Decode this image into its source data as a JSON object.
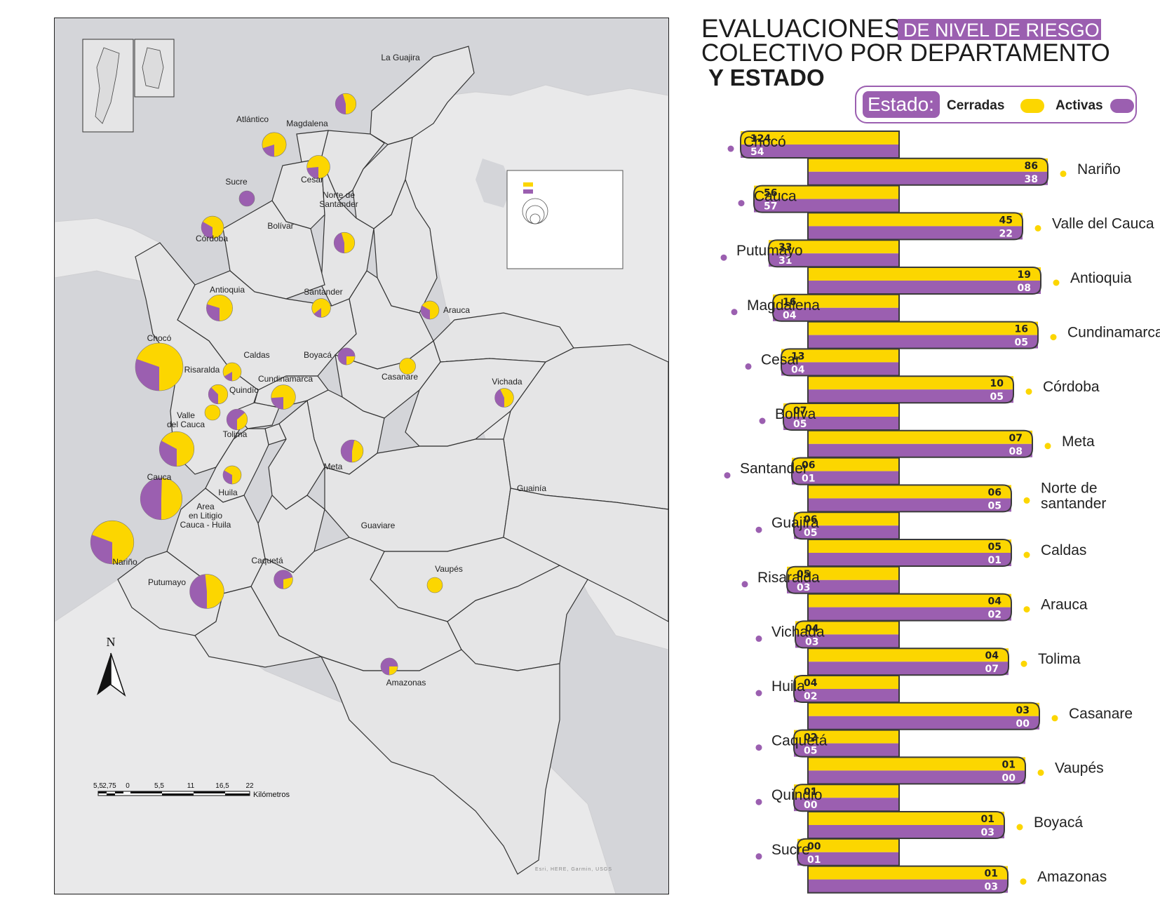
{
  "title": {
    "part1": "EVALUACIONES",
    "part2_highlight": "DE NIVEL DE RIESGO",
    "line2": "COLECTIVO POR DEPARTAMENTO",
    "line3": "Y ESTADO"
  },
  "legend": {
    "label": "Estado:",
    "closed_label": "Cerradas",
    "active_label": "Activas"
  },
  "colors": {
    "closed": "#fcd600",
    "active": "#9b5fb0",
    "title_highlight": "#9b5fb0",
    "map_land": "#e5e5e6",
    "map_water": "#d4d5d9"
  },
  "chart_data": {
    "type": "bar",
    "series": [
      {
        "name": "Cerradas",
        "color": "#fcd600"
      },
      {
        "name": "Activas",
        "color": "#9b5fb0"
      }
    ],
    "rows": [
      {
        "dept": "Chocó",
        "cerradas": "124",
        "activas": "54"
      },
      {
        "dept": "Nariño",
        "cerradas": "86",
        "activas": "38"
      },
      {
        "dept": "Cauca",
        "cerradas": "56",
        "activas": "57"
      },
      {
        "dept": "Valle del Cauca",
        "cerradas": "45",
        "activas": "22"
      },
      {
        "dept": "Putumayo",
        "cerradas": "33",
        "activas": "31"
      },
      {
        "dept": "Antioquia",
        "cerradas": "19",
        "activas": "08"
      },
      {
        "dept": "Magdalena",
        "cerradas": "16",
        "activas": "04"
      },
      {
        "dept": "Cundinamarca",
        "cerradas": "16",
        "activas": "05"
      },
      {
        "dept": "Cesar",
        "cerradas": "13",
        "activas": "04"
      },
      {
        "dept": "Córdoba",
        "cerradas": "10",
        "activas": "05"
      },
      {
        "dept": "Bolíva",
        "cerradas": "07",
        "activas": "05"
      },
      {
        "dept": "Meta",
        "cerradas": "07",
        "activas": "08"
      },
      {
        "dept": "Santander",
        "cerradas": "06",
        "activas": "01"
      },
      {
        "dept": "Norte de\nsantander",
        "cerradas": "06",
        "activas": "05"
      },
      {
        "dept": "Guajira",
        "cerradas": "06",
        "activas": "05"
      },
      {
        "dept": "Caldas",
        "cerradas": "05",
        "activas": "01"
      },
      {
        "dept": "Risaralda",
        "cerradas": "05",
        "activas": "03"
      },
      {
        "dept": "Arauca",
        "cerradas": "04",
        "activas": "02"
      },
      {
        "dept": "Vichada",
        "cerradas": "04",
        "activas": "03"
      },
      {
        "dept": "Tolima",
        "cerradas": "04",
        "activas": "07"
      },
      {
        "dept": "Huila",
        "cerradas": "04",
        "activas": "02"
      },
      {
        "dept": "Casanare",
        "cerradas": "03",
        "activas": "00"
      },
      {
        "dept": "Caquetá",
        "cerradas": "02",
        "activas": "05"
      },
      {
        "dept": "Vaupés",
        "cerradas": "01",
        "activas": "00"
      },
      {
        "dept": "Quindio",
        "cerradas": "01",
        "activas": "00"
      },
      {
        "dept": "Boyacá",
        "cerradas": "01",
        "activas": "03"
      },
      {
        "dept": "Sucre",
        "cerradas": "00",
        "activas": "01"
      },
      {
        "dept": "Amazonas",
        "cerradas": "01",
        "activas": "03"
      }
    ]
  },
  "map": {
    "labels": [
      {
        "text": "La Guajira"
      },
      {
        "text": "Magdalena"
      },
      {
        "text": "Atlántico"
      },
      {
        "text": "Cesar"
      },
      {
        "text": "Sucre"
      },
      {
        "text": "Norte de\nSantander"
      },
      {
        "text": "Bolívar"
      },
      {
        "text": "Córdoba"
      },
      {
        "text": "Antioquia"
      },
      {
        "text": "Santander"
      },
      {
        "text": "Arauca"
      },
      {
        "text": "Chocó"
      },
      {
        "text": "Caldas"
      },
      {
        "text": "Boyacá"
      },
      {
        "text": "Casanare"
      },
      {
        "text": "Risaralda"
      },
      {
        "text": "Quindío"
      },
      {
        "text": "Cundinamarca"
      },
      {
        "text": "Vichada"
      },
      {
        "text": "Valle\ndel Cauca"
      },
      {
        "text": "Tolima"
      },
      {
        "text": "Meta"
      },
      {
        "text": "Cauca"
      },
      {
        "text": "Huila"
      },
      {
        "text": "Area\nen Litigio\nCauca - Huila"
      },
      {
        "text": "Guainía"
      },
      {
        "text": "Guaviare"
      },
      {
        "text": "Nariño"
      },
      {
        "text": "Caquetá"
      },
      {
        "text": "Vaupés"
      },
      {
        "text": "Putumayo"
      },
      {
        "text": "Amazonas"
      }
    ],
    "north_label": "N",
    "scale": {
      "ticks": [
        "5,5",
        "2,75",
        "0",
        "5,5",
        "11",
        "16,5",
        "22"
      ],
      "unit": "Kilómetros"
    },
    "attribution": "Esri, HERE, Garmin, USGS"
  }
}
